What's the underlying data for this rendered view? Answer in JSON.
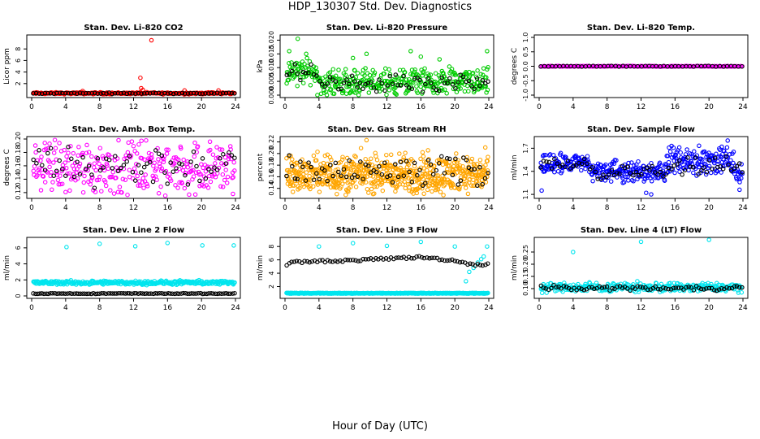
{
  "figure": {
    "title": "HDP_130307  Std. Dev. Diagnostics",
    "xlabel": "Hour of Day (UTC)"
  },
  "chart_data": [
    {
      "type": "scatter",
      "title": "Stan. Dev. Li-820 CO2",
      "ylabel": "Licor ppm",
      "xlim": [
        0,
        24
      ],
      "ylim": [
        0,
        10
      ],
      "xticks": [
        0,
        4,
        8,
        12,
        16,
        20,
        24
      ],
      "xtick_labels": [
        "0",
        "4",
        "8",
        "12",
        "16",
        "20",
        "24"
      ],
      "yticks": [
        2,
        4,
        6,
        8
      ],
      "ytick_labels": [
        "2",
        "4",
        "6",
        "8"
      ],
      "series": [
        {
          "color": "#ff0000",
          "pattern": "band",
          "band": [
            0.2,
            0.45
          ],
          "n": 260,
          "points": [
            [
              14.1,
              9.5
            ],
            [
              12.8,
              3.0
            ],
            [
              12.9,
              1.2
            ],
            [
              13.1,
              0.9
            ],
            [
              6.0,
              0.7
            ],
            [
              18.0,
              0.8
            ],
            [
              22.0,
              0.8
            ]
          ]
        },
        {
          "color": "#000000",
          "pattern": "band",
          "band": [
            0.25,
            0.4
          ],
          "n": 70,
          "points": []
        }
      ]
    },
    {
      "type": "scatter",
      "title": "Stan. Dev. Li-820 Pressure",
      "ylabel": "kPa",
      "xlim": [
        0,
        24
      ],
      "ylim": [
        0,
        0.021
      ],
      "xticks": [
        0,
        4,
        8,
        12,
        16,
        20,
        24
      ],
      "xtick_labels": [
        "0",
        "4",
        "8",
        "12",
        "16",
        "20",
        "24"
      ],
      "yticks": [
        0.0,
        0.005,
        0.01,
        0.015,
        0.02
      ],
      "ytick_labels": [
        "0.000",
        "0.005",
        "0.010",
        "0.015",
        "0.020"
      ],
      "series": [
        {
          "color": "#00cc00",
          "pattern": "step",
          "segments": [
            [
              0.2,
              3.8,
              0.0045,
              0.012
            ],
            [
              3.8,
              24,
              0.0005,
              0.0085
            ]
          ],
          "n": 420,
          "points": [
            [
              1.5,
              0.0205
            ],
            [
              0.5,
              0.016
            ],
            [
              2.5,
              0.015
            ],
            [
              9.6,
              0.015
            ],
            [
              14.8,
              0.016
            ],
            [
              23.8,
              0.016
            ],
            [
              8.0,
              0.0135
            ],
            [
              16.0,
              0.014
            ],
            [
              18.2,
              0.013
            ]
          ]
        },
        {
          "color": "#000000",
          "pattern": "step",
          "segments": [
            [
              0.2,
              3.8,
              0.006,
              0.0105
            ],
            [
              3.8,
              24,
              0.0015,
              0.0065
            ]
          ],
          "n": 75,
          "points": []
        }
      ]
    },
    {
      "type": "scatter",
      "title": "Stan. Dev. Li-820 Temp.",
      "ylabel": "degrees C",
      "xlim": [
        0,
        24
      ],
      "ylim": [
        -1,
        1
      ],
      "xticks": [
        0,
        4,
        8,
        12,
        16,
        20,
        24
      ],
      "xtick_labels": [
        "0",
        "4",
        "8",
        "12",
        "16",
        "20",
        "24"
      ],
      "yticks": [
        -1.0,
        -0.5,
        0.0,
        0.5,
        1.0
      ],
      "ytick_labels": [
        "-1.0",
        "-0.5",
        "0.0",
        "0.5",
        "1.0"
      ],
      "series": [
        {
          "color": "#ff00ff",
          "pattern": "line",
          "y": 0.0,
          "n": 200,
          "points": []
        },
        {
          "color": "#000000",
          "pattern": "line",
          "y": 0.0,
          "n": 55,
          "points": []
        }
      ]
    },
    {
      "type": "scatter",
      "title": "Stan. Dev. Amb. Box Temp.",
      "ylabel": "degrees C",
      "xlim": [
        0,
        24
      ],
      "ylim": [
        0.115,
        0.2
      ],
      "xticks": [
        0,
        4,
        8,
        12,
        16,
        20,
        24
      ],
      "xtick_labels": [
        "0",
        "4",
        "8",
        "12",
        "16",
        "20",
        "24"
      ],
      "yticks": [
        0.12,
        0.14,
        0.16,
        0.18,
        0.2
      ],
      "ytick_labels": [
        "0.12",
        "0.14",
        "0.16",
        "0.18",
        "0.20"
      ],
      "series": [
        {
          "color": "#ff00ff",
          "pattern": "band",
          "band": [
            0.125,
            0.19
          ],
          "n": 320,
          "points": [
            [
              23.7,
              0.118
            ],
            [
              21.0,
              0.196
            ],
            [
              2.1,
              0.193
            ]
          ]
        },
        {
          "color": "#000000",
          "pattern": "band",
          "band": [
            0.135,
            0.185
          ],
          "n": 70,
          "points": []
        }
      ]
    },
    {
      "type": "scatter",
      "title": "Stan. Dev. Gas Stream RH",
      "ylabel": "percent",
      "xlim": [
        0,
        24
      ],
      "ylim": [
        0.127,
        0.225
      ],
      "xticks": [
        0,
        4,
        8,
        12,
        16,
        20,
        24
      ],
      "xtick_labels": [
        "0",
        "4",
        "8",
        "12",
        "16",
        "20",
        "24"
      ],
      "yticks": [
        0.14,
        0.16,
        0.18,
        0.2,
        0.22
      ],
      "ytick_labels": [
        "0.14",
        "0.16",
        "0.18",
        "0.20",
        "0.22"
      ],
      "series": [
        {
          "color": "#ffa500",
          "pattern": "band",
          "band": [
            0.137,
            0.19
          ],
          "n": 650,
          "points": [
            [
              9.6,
              0.223
            ],
            [
              5.0,
              0.198
            ],
            [
              16.2,
              0.202
            ],
            [
              12.5,
              0.198
            ]
          ]
        },
        {
          "color": "#000000",
          "pattern": "band",
          "band": [
            0.145,
            0.19
          ],
          "n": 75,
          "points": []
        }
      ]
    },
    {
      "type": "scatter",
      "title": "Stan. Dev. Sample Flow",
      "ylabel": "ml/min",
      "xlim": [
        0,
        24
      ],
      "ylim": [
        1.08,
        1.82
      ],
      "xticks": [
        0,
        4,
        8,
        12,
        16,
        20,
        24
      ],
      "xtick_labels": [
        "0",
        "4",
        "8",
        "12",
        "16",
        "20",
        "24"
      ],
      "yticks": [
        1.1,
        1.4,
        1.7
      ],
      "ytick_labels": [
        "1.1",
        "1.4",
        "1.7"
      ],
      "series": [
        {
          "color": "#0000ff",
          "pattern": "step",
          "segments": [
            [
              0.2,
              6,
              1.4,
              1.6
            ],
            [
              6,
              15,
              1.3,
              1.5
            ],
            [
              15,
              23,
              1.4,
              1.68
            ],
            [
              23,
              24,
              1.25,
              1.5
            ]
          ],
          "n": 420,
          "points": [
            [
              0.3,
              1.15
            ],
            [
              13.2,
              1.1
            ],
            [
              12.6,
              1.12
            ],
            [
              23.6,
              1.16
            ],
            [
              22.2,
              1.8
            ],
            [
              21.5,
              1.72
            ],
            [
              1.3,
              1.62
            ],
            [
              16.5,
              1.71
            ]
          ]
        },
        {
          "color": "#000000",
          "pattern": "step",
          "segments": [
            [
              0.2,
              6,
              1.42,
              1.56
            ],
            [
              6,
              15,
              1.32,
              1.47
            ],
            [
              15,
              24,
              1.38,
              1.58
            ]
          ],
          "n": 75,
          "points": []
        }
      ]
    },
    {
      "type": "scatter",
      "title": "Stan. Dev. Line 2 Flow",
      "ylabel": "ml/min",
      "xlim": [
        0,
        24
      ],
      "ylim": [
        0,
        7
      ],
      "xticks": [
        0,
        4,
        8,
        12,
        16,
        20,
        24
      ],
      "xtick_labels": [
        "0",
        "4",
        "8",
        "12",
        "16",
        "20",
        "24"
      ],
      "yticks": [
        0,
        2,
        4,
        6
      ],
      "ytick_labels": [
        "0",
        "2",
        "4",
        "6"
      ],
      "series": [
        {
          "color": "#00e5ee",
          "pattern": "band",
          "band": [
            1.45,
            1.85
          ],
          "n": 340,
          "points": [
            [
              4.1,
              6.1
            ],
            [
              8.0,
              6.5
            ],
            [
              12.2,
              6.2
            ],
            [
              16.0,
              6.6
            ],
            [
              20.1,
              6.3
            ],
            [
              23.8,
              6.3
            ]
          ]
        },
        {
          "color": "#000000",
          "pattern": "line",
          "y": 0.3,
          "n": 95,
          "points": []
        }
      ]
    },
    {
      "type": "scatter",
      "title": "Stan. Dev. Line 3 Flow",
      "ylabel": "ml/min",
      "xlim": [
        0,
        24
      ],
      "ylim": [
        0.6,
        9.0
      ],
      "xticks": [
        0,
        4,
        8,
        12,
        16,
        20,
        24
      ],
      "xtick_labels": [
        "0",
        "4",
        "8",
        "12",
        "16",
        "20",
        "24"
      ],
      "yticks": [
        2,
        4,
        6,
        8
      ],
      "ytick_labels": [
        "2",
        "4",
        "6",
        "8"
      ],
      "series": [
        {
          "color": "#00e5ee",
          "pattern": "line",
          "y": 1.0,
          "n": 360,
          "points": [
            [
              4.0,
              8.0
            ],
            [
              8.0,
              8.5
            ],
            [
              12.0,
              8.1
            ],
            [
              16.0,
              8.7
            ],
            [
              20.0,
              8.0
            ],
            [
              23.8,
              8.0
            ],
            [
              21.3,
              2.8
            ],
            [
              21.7,
              4.2
            ],
            [
              22.2,
              4.8
            ],
            [
              22.7,
              5.6
            ],
            [
              23.1,
              6.1
            ],
            [
              23.4,
              6.5
            ]
          ]
        },
        {
          "color": "#000000",
          "pattern": "curve",
          "curve": [
            [
              0.2,
              5.6
            ],
            [
              4,
              5.8
            ],
            [
              8,
              5.9
            ],
            [
              12,
              6.2
            ],
            [
              16,
              6.4
            ],
            [
              20,
              5.9
            ],
            [
              22,
              5.3
            ],
            [
              24,
              5.3
            ]
          ],
          "n": 80,
          "points": []
        }
      ]
    },
    {
      "type": "scatter",
      "title": "Stan. Dev. Line 4 (LT) Flow",
      "ylabel": "ml/min",
      "xlim": [
        0,
        24
      ],
      "ylim": [
        0.07,
        0.3
      ],
      "xticks": [
        0,
        4,
        8,
        12,
        16,
        20,
        24
      ],
      "xtick_labels": [
        "0",
        "4",
        "8",
        "12",
        "16",
        "20",
        "24"
      ],
      "yticks": [
        0.1,
        0.15,
        0.2,
        0.25
      ],
      "ytick_labels": [
        "0.10",
        "0.15",
        "0.20",
        "0.25"
      ],
      "series": [
        {
          "color": "#00e5ee",
          "pattern": "band",
          "band": [
            0.09,
            0.12
          ],
          "n": 320,
          "points": [
            [
              4.0,
              0.25
            ],
            [
              12.0,
              0.292
            ],
            [
              20.0,
              0.3
            ]
          ]
        },
        {
          "color": "#000000",
          "pattern": "band",
          "band": [
            0.095,
            0.11
          ],
          "n": 80,
          "points": []
        }
      ]
    }
  ]
}
